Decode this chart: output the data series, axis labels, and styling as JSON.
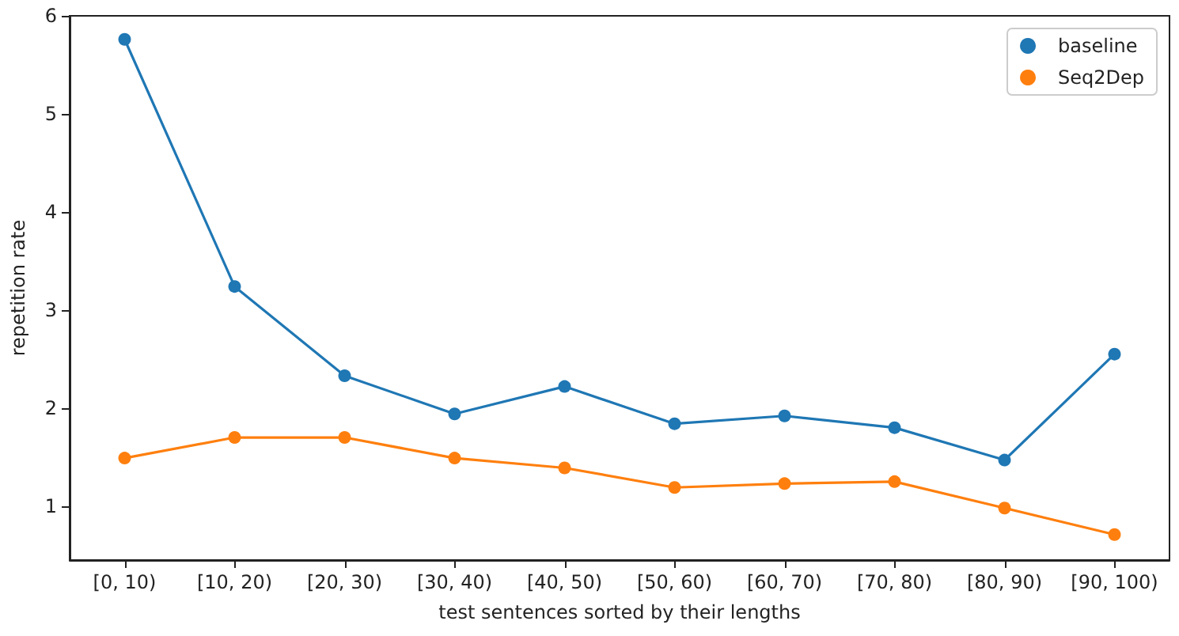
{
  "chart_data": {
    "type": "line",
    "xlabel": "test sentences sorted by their lengths",
    "ylabel": "repetition rate",
    "categories": [
      "[0, 10)",
      "[10, 20)",
      "[20, 30)",
      "[30, 40)",
      "[40, 50)",
      "[50, 60)",
      "[60, 70)",
      "[70, 80)",
      "[80, 90)",
      "[90, 100)"
    ],
    "series": [
      {
        "name": "baseline",
        "color": "#1f77b4",
        "values": [
          5.76,
          3.24,
          2.33,
          1.94,
          2.22,
          1.84,
          1.92,
          1.8,
          1.47,
          2.55
        ]
      },
      {
        "name": "Seq2Dep",
        "color": "#ff7f0e",
        "values": [
          1.49,
          1.7,
          1.7,
          1.49,
          1.39,
          1.19,
          1.23,
          1.25,
          0.98,
          0.71
        ]
      }
    ],
    "ylim": [
      0.45,
      6
    ],
    "yticks": [
      1,
      2,
      3,
      4,
      5,
      6
    ],
    "grid": false,
    "legend": "top right",
    "marker": "circle",
    "line_style": "solid"
  }
}
